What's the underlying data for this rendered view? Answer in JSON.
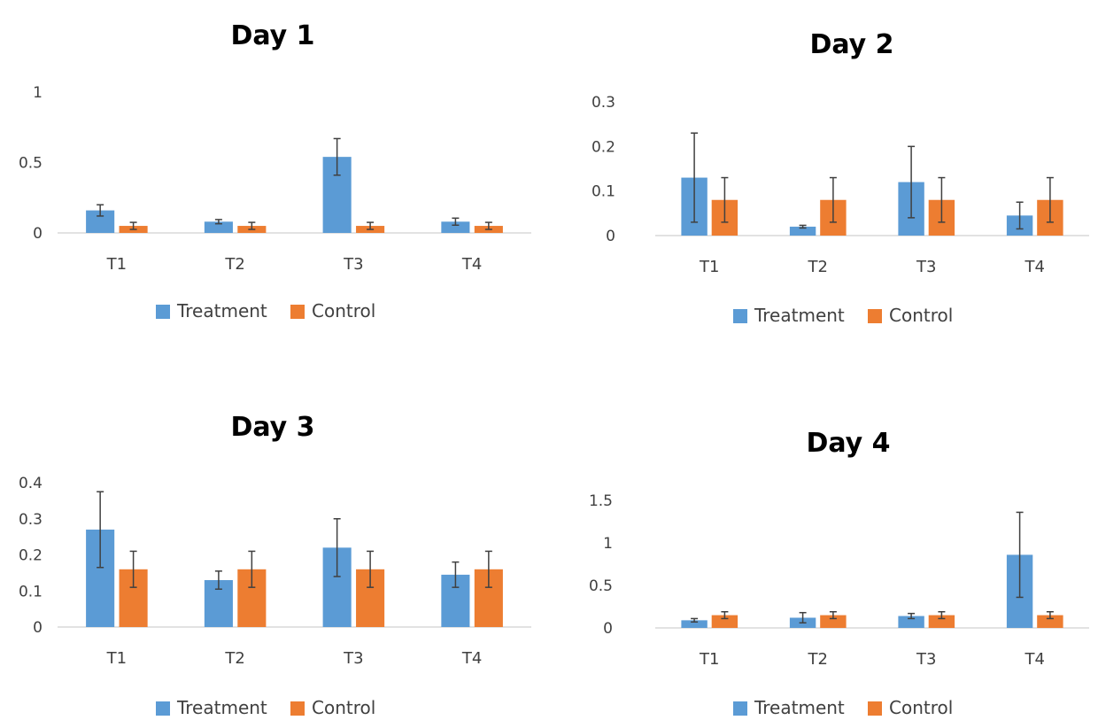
{
  "colors": {
    "treatment": "#5b9bd5",
    "control": "#ed7d31",
    "axis": "#d9d9d9",
    "errorbar": "#404040"
  },
  "legend": {
    "treatment": "Treatment",
    "control": "Control"
  },
  "chart_data": [
    {
      "type": "bar",
      "title": "Day 1",
      "categories": [
        "T1",
        "T2",
        "T3",
        "T4"
      ],
      "ylim": [
        0,
        1
      ],
      "yticks": [
        "0",
        "0.5",
        "1"
      ],
      "yticks_values": [
        0,
        0.5,
        1
      ],
      "grid": false,
      "legend_position": "bottom",
      "series": [
        {
          "name": "Treatment",
          "values": [
            0.16,
            0.08,
            0.54,
            0.08
          ],
          "errors": [
            0.04,
            0.015,
            0.13,
            0.025
          ]
        },
        {
          "name": "Control",
          "values": [
            0.05,
            0.05,
            0.05,
            0.05
          ],
          "errors": [
            0.025,
            0.025,
            0.025,
            0.025
          ]
        }
      ]
    },
    {
      "type": "bar",
      "title": "Day 2",
      "categories": [
        "T1",
        "T2",
        "T3",
        "T4"
      ],
      "ylim": [
        0,
        0.3
      ],
      "yticks": [
        "0",
        "0.1",
        "0.2",
        "0.3"
      ],
      "yticks_values": [
        0,
        0.1,
        0.2,
        0.3
      ],
      "grid": false,
      "legend_position": "bottom",
      "series": [
        {
          "name": "Treatment",
          "values": [
            0.13,
            0.02,
            0.12,
            0.045
          ],
          "errors": [
            0.1,
            0.003,
            0.08,
            0.03
          ]
        },
        {
          "name": "Control",
          "values": [
            0.08,
            0.08,
            0.08,
            0.08
          ],
          "errors": [
            0.05,
            0.05,
            0.05,
            0.05
          ]
        }
      ]
    },
    {
      "type": "bar",
      "title": "Day 3",
      "categories": [
        "T1",
        "T2",
        "T3",
        "T4"
      ],
      "ylim": [
        0,
        0.4
      ],
      "yticks": [
        "0",
        "0.1",
        "0.2",
        "0.3",
        "0.4"
      ],
      "yticks_values": [
        0,
        0.1,
        0.2,
        0.3,
        0.4
      ],
      "grid": false,
      "legend_position": "bottom",
      "series": [
        {
          "name": "Treatment",
          "values": [
            0.27,
            0.13,
            0.22,
            0.145
          ],
          "errors": [
            0.105,
            0.025,
            0.08,
            0.035
          ]
        },
        {
          "name": "Control",
          "values": [
            0.16,
            0.16,
            0.16,
            0.16
          ],
          "errors": [
            0.05,
            0.05,
            0.05,
            0.05
          ]
        }
      ]
    },
    {
      "type": "bar",
      "title": "Day 4",
      "categories": [
        "T1",
        "T2",
        "T3",
        "T4"
      ],
      "ylim": [
        0,
        1.5
      ],
      "yticks": [
        "0",
        "0.5",
        "1",
        "1.5"
      ],
      "yticks_values": [
        0,
        0.5,
        1,
        1.5
      ],
      "grid": false,
      "legend_position": "bottom",
      "series": [
        {
          "name": "Treatment",
          "values": [
            0.09,
            0.12,
            0.14,
            0.86
          ],
          "errors": [
            0.02,
            0.06,
            0.03,
            0.5
          ]
        },
        {
          "name": "Control",
          "values": [
            0.15,
            0.15,
            0.15,
            0.15
          ],
          "errors": [
            0.04,
            0.04,
            0.04,
            0.04
          ]
        }
      ]
    }
  ]
}
